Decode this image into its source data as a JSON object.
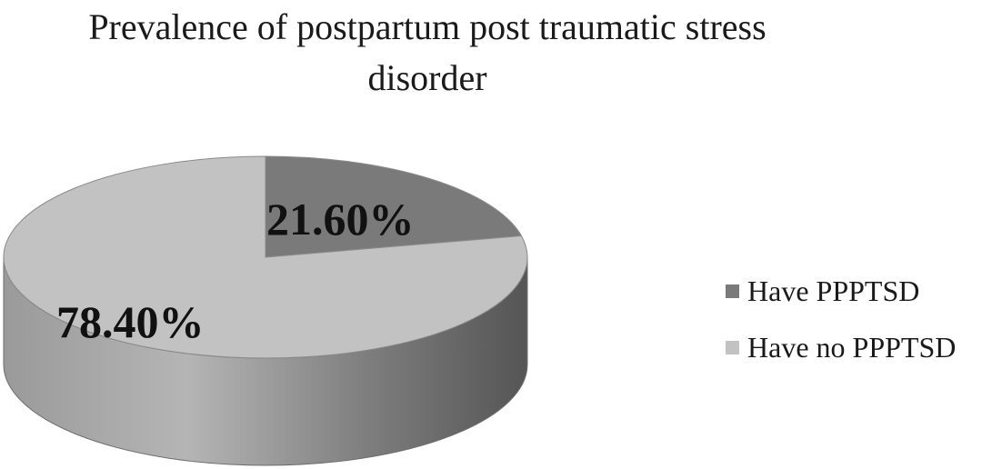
{
  "chart_data": {
    "type": "pie",
    "style": "3d",
    "title_lines": [
      "Prevalence of postpartum post traumatic stress",
      "disorder"
    ],
    "slices": [
      {
        "name": "Have PPPTSD",
        "value": 21.6,
        "label": "21.60%",
        "color": "#7a7a7a"
      },
      {
        "name": "Have no PPPTSD",
        "value": 78.4,
        "label": "78.40%",
        "color": "#c2c2c2"
      }
    ],
    "legend_position": "right"
  }
}
